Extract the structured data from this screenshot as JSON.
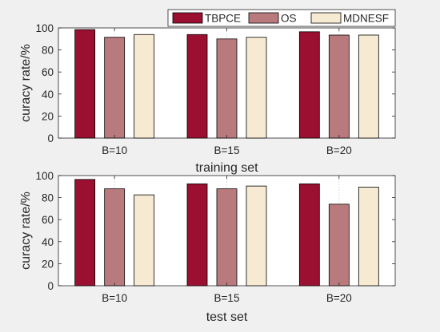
{
  "legend": {
    "placement": "top-right",
    "entries": [
      {
        "label": "TBPCE",
        "color": "#9b1030"
      },
      {
        "label": "OS",
        "color": "#b97a7e"
      },
      {
        "label": "MDNESF",
        "color": "#f6ead2"
      }
    ]
  },
  "chart_data": [
    {
      "type": "bar",
      "categories": [
        "B=10",
        "B=15",
        "B=20"
      ],
      "series": [
        {
          "name": "TBPCE",
          "values": [
            98.5,
            94,
            96.5
          ]
        },
        {
          "name": "OS",
          "values": [
            91.5,
            90,
            93.5
          ]
        },
        {
          "name": "MDNESF",
          "values": [
            94,
            91.5,
            93.5
          ]
        }
      ],
      "xlabel": "training set",
      "ylabel": "curacy rate/%",
      "ylim": [
        0,
        100
      ],
      "yticks": [
        "0",
        "20",
        "40",
        "60",
        "80",
        "100"
      ],
      "grid": "vertical dotted lines at category positions"
    },
    {
      "type": "bar",
      "categories": [
        "B=10",
        "B=15",
        "B=20"
      ],
      "series": [
        {
          "name": "TBPCE",
          "values": [
            96.5,
            92.5,
            92.5
          ]
        },
        {
          "name": "OS",
          "values": [
            88,
            88,
            74
          ]
        },
        {
          "name": "MDNESF",
          "values": [
            82.5,
            90.5,
            89.5
          ]
        }
      ],
      "xlabel": "test set",
      "ylabel": "curacy rate/%",
      "ylim": [
        0,
        100
      ],
      "yticks": [
        "0",
        "20",
        "40",
        "60",
        "80",
        "100"
      ],
      "grid": "vertical dotted lines at category positions"
    }
  ]
}
